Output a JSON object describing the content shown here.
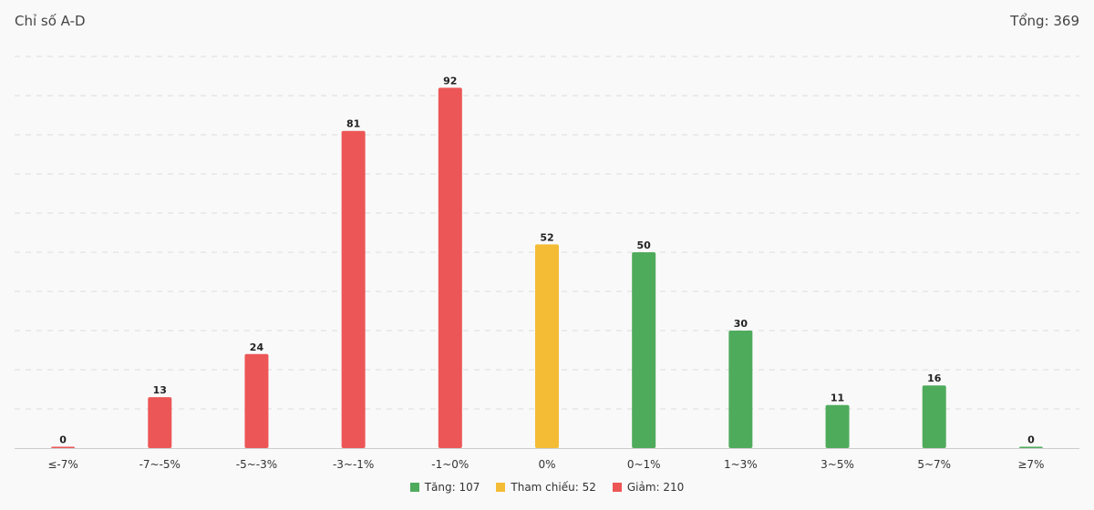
{
  "header": {
    "title": "Chỉ số A-D",
    "total_label": "Tổng: 369"
  },
  "colors": {
    "down": "#ed5656",
    "ref": "#f4bc35",
    "up": "#4fab5c",
    "grid": "#dddddd",
    "axis": "#cccccc"
  },
  "legend": [
    {
      "label": "Tăng: 107",
      "color": "#4fab5c"
    },
    {
      "label": "Tham chiếu: 52",
      "color": "#f4bc35"
    },
    {
      "label": "Giảm: 210",
      "color": "#ed5656"
    }
  ],
  "chart_data": {
    "type": "bar",
    "title": "Chỉ số A-D",
    "categories": [
      "≤-7%",
      "-7~-5%",
      "-5~-3%",
      "-3~-1%",
      "-1~0%",
      "0%",
      "0~1%",
      "1~3%",
      "3~5%",
      "5~7%",
      "≥7%"
    ],
    "values": [
      0,
      13,
      24,
      81,
      92,
      52,
      50,
      30,
      11,
      16,
      0
    ],
    "bar_groups": [
      "down",
      "down",
      "down",
      "down",
      "down",
      "ref",
      "up",
      "up",
      "up",
      "up",
      "up"
    ],
    "ylim": [
      0,
      100
    ],
    "grid": true,
    "legend_position": "bottom"
  }
}
